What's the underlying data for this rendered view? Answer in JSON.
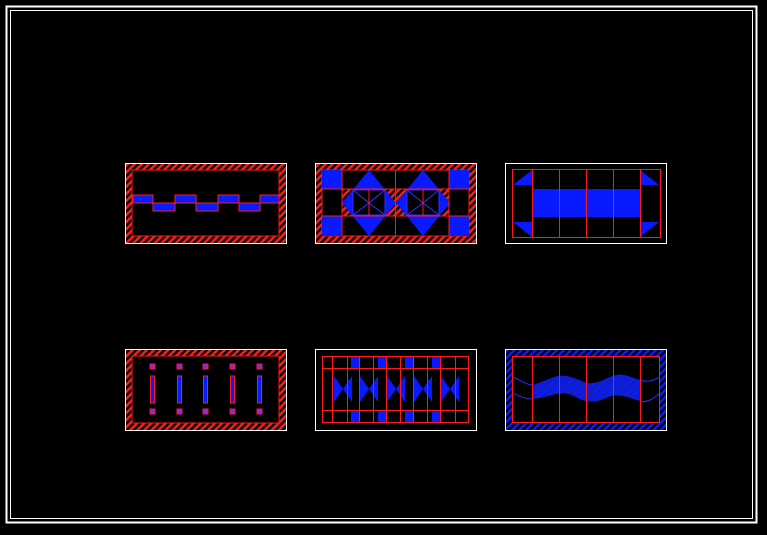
{
  "canvas": {
    "background": "#000000",
    "frame_color": "#ffffff"
  },
  "colors": {
    "red": "#ff1a1a",
    "blue": "#0a1aff",
    "white": "#ffffff",
    "purple": "#7a2cff"
  },
  "panels": [
    {
      "id": "staircase-band"
    },
    {
      "id": "diamond-grid"
    },
    {
      "id": "center-band-corner-triangles"
    },
    {
      "id": "vertical-bars"
    },
    {
      "id": "bowtie-grid"
    },
    {
      "id": "wave-band"
    }
  ]
}
